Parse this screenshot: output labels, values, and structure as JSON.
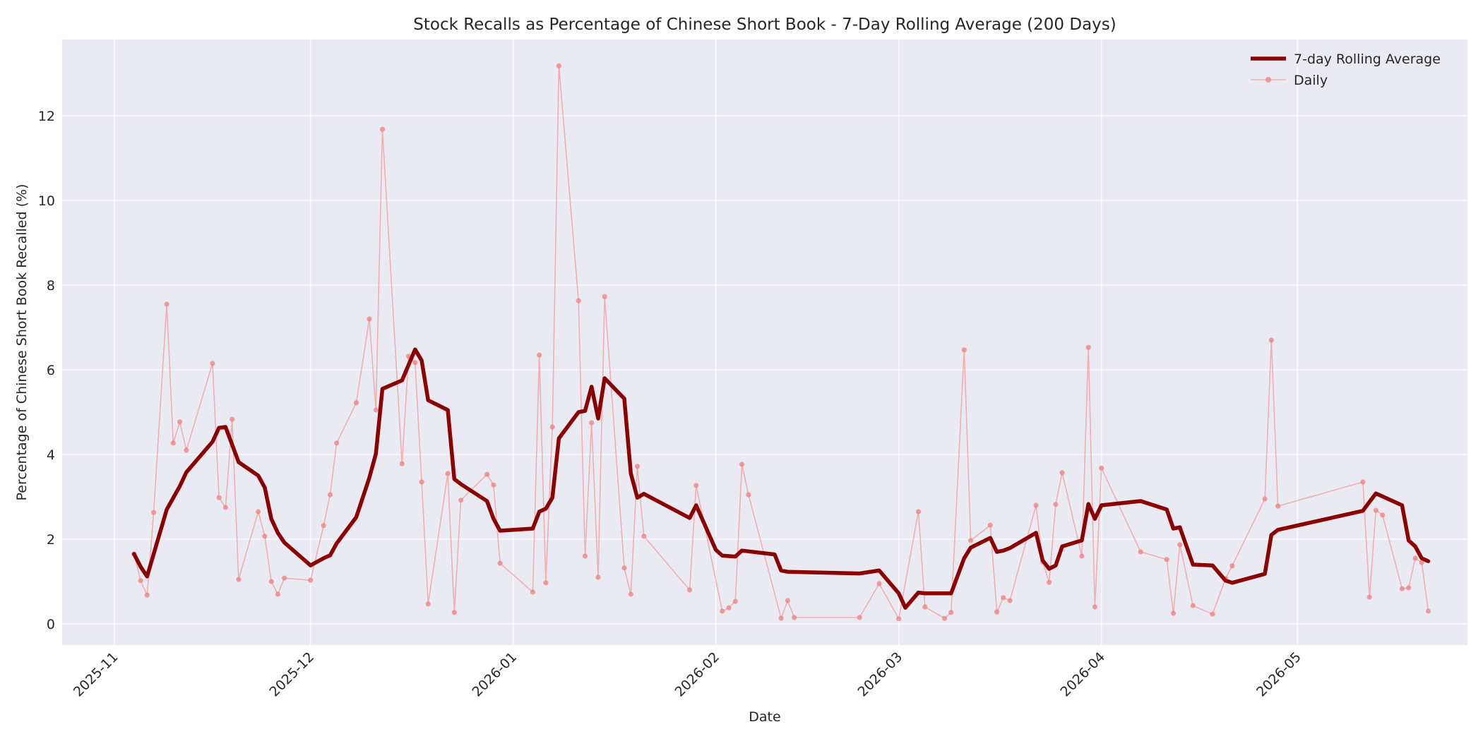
{
  "chart_data": {
    "type": "line",
    "title": "Stock Recalls as Percentage of Chinese Short Book - 7-Day Rolling Average (200 Days)",
    "xlabel": "Date",
    "ylabel": "Percentage of Chinese Short Book Recalled (%)",
    "x_range": [
      "2025-10-24",
      "2026-05-27"
    ],
    "ylim": [
      -0.5,
      13.8
    ],
    "x_ticks": [
      "2025-11-01",
      "2025-12-01",
      "2026-01-01",
      "2026-02-01",
      "2026-03-01",
      "2026-04-01",
      "2026-05-01"
    ],
    "x_tick_labels": [
      "2025-11",
      "2025-12",
      "2026-01",
      "2026-02",
      "2026-03",
      "2026-04",
      "2026-05"
    ],
    "y_ticks": [
      0,
      2,
      4,
      6,
      8,
      10,
      12
    ],
    "y_tick_labels": [
      "0",
      "2",
      "4",
      "6",
      "8",
      "10",
      "12"
    ],
    "grid": true,
    "legend_position": "top-right",
    "colors": {
      "plot_background": "#eaeaf2",
      "grid": "#ffffff",
      "rolling": "#8b0000",
      "daily": "#f08080"
    },
    "series": [
      {
        "name": "7-day Rolling Average",
        "style": "thick-line",
        "points": [
          [
            "2025-11-04",
            1.65
          ],
          [
            "2025-11-05",
            1.35
          ],
          [
            "2025-11-06",
            1.12
          ],
          [
            "2025-11-09",
            2.7
          ],
          [
            "2025-11-11",
            3.25
          ],
          [
            "2025-11-12",
            3.58
          ],
          [
            "2025-11-16",
            4.3
          ],
          [
            "2025-11-17",
            4.63
          ],
          [
            "2025-11-18",
            4.65
          ],
          [
            "2025-11-20",
            3.82
          ],
          [
            "2025-11-23",
            3.5
          ],
          [
            "2025-11-24",
            3.22
          ],
          [
            "2025-11-25",
            2.48
          ],
          [
            "2025-11-26",
            2.15
          ],
          [
            "2025-11-27",
            1.92
          ],
          [
            "2025-12-01",
            1.38
          ],
          [
            "2025-12-03",
            1.55
          ],
          [
            "2025-12-04",
            1.62
          ],
          [
            "2025-12-05",
            1.9
          ],
          [
            "2025-12-08",
            2.52
          ],
          [
            "2025-12-10",
            3.45
          ],
          [
            "2025-12-11",
            4.02
          ],
          [
            "2025-12-12",
            5.55
          ],
          [
            "2025-12-15",
            5.75
          ],
          [
            "2025-12-17",
            6.48
          ],
          [
            "2025-12-18",
            6.22
          ],
          [
            "2025-12-19",
            5.28
          ],
          [
            "2025-12-22",
            5.05
          ],
          [
            "2025-12-23",
            3.42
          ],
          [
            "2025-12-24",
            3.3
          ],
          [
            "2025-12-28",
            2.9
          ],
          [
            "2025-12-29",
            2.48
          ],
          [
            "2025-12-30",
            2.2
          ],
          [
            "2026-01-04",
            2.25
          ],
          [
            "2026-01-05",
            2.65
          ],
          [
            "2026-01-06",
            2.72
          ],
          [
            "2026-01-07",
            2.98
          ],
          [
            "2026-01-08",
            4.38
          ],
          [
            "2026-01-11",
            5.0
          ],
          [
            "2026-01-12",
            5.03
          ],
          [
            "2026-01-13",
            5.6
          ],
          [
            "2026-01-14",
            4.85
          ],
          [
            "2026-01-15",
            5.8
          ],
          [
            "2026-01-18",
            5.32
          ],
          [
            "2026-01-19",
            3.55
          ],
          [
            "2026-01-20",
            2.98
          ],
          [
            "2026-01-21",
            3.07
          ],
          [
            "2026-01-28",
            2.5
          ],
          [
            "2026-01-29",
            2.8
          ],
          [
            "2026-02-01",
            1.75
          ],
          [
            "2026-02-02",
            1.61
          ],
          [
            "2026-02-04",
            1.59
          ],
          [
            "2026-02-05",
            1.73
          ],
          [
            "2026-02-10",
            1.64
          ],
          [
            "2026-02-11",
            1.26
          ],
          [
            "2026-02-12",
            1.23
          ],
          [
            "2026-02-23",
            1.19
          ],
          [
            "2026-02-26",
            1.26
          ],
          [
            "2026-03-01",
            0.72
          ],
          [
            "2026-03-02",
            0.38
          ],
          [
            "2026-03-04",
            0.74
          ],
          [
            "2026-03-05",
            0.72
          ],
          [
            "2026-03-09",
            0.72
          ],
          [
            "2026-03-11",
            1.55
          ],
          [
            "2026-03-12",
            1.8
          ],
          [
            "2026-03-15",
            2.03
          ],
          [
            "2026-03-16",
            1.7
          ],
          [
            "2026-03-17",
            1.73
          ],
          [
            "2026-03-18",
            1.79
          ],
          [
            "2026-03-22",
            2.15
          ],
          [
            "2026-03-23",
            1.5
          ],
          [
            "2026-03-24",
            1.3
          ],
          [
            "2026-03-25",
            1.38
          ],
          [
            "2026-03-26",
            1.83
          ],
          [
            "2026-03-29",
            1.97
          ],
          [
            "2026-03-30",
            2.83
          ],
          [
            "2026-03-31",
            2.48
          ],
          [
            "2026-04-01",
            2.8
          ],
          [
            "2026-04-07",
            2.9
          ],
          [
            "2026-04-11",
            2.7
          ],
          [
            "2026-04-12",
            2.25
          ],
          [
            "2026-04-13",
            2.28
          ],
          [
            "2026-04-15",
            1.4
          ],
          [
            "2026-04-18",
            1.38
          ],
          [
            "2026-04-20",
            1.02
          ],
          [
            "2026-04-21",
            0.97
          ],
          [
            "2026-04-26",
            1.18
          ],
          [
            "2026-04-27",
            2.1
          ],
          [
            "2026-04-28",
            2.22
          ],
          [
            "2026-05-11",
            2.67
          ],
          [
            "2026-05-12",
            2.88
          ],
          [
            "2026-05-13",
            3.08
          ],
          [
            "2026-05-17",
            2.8
          ],
          [
            "2026-05-18",
            1.97
          ],
          [
            "2026-05-19",
            1.83
          ],
          [
            "2026-05-20",
            1.55
          ],
          [
            "2026-05-21",
            1.48
          ]
        ]
      },
      {
        "name": "Daily",
        "style": "thin-line-with-markers",
        "points": [
          [
            "2025-11-04",
            1.65
          ],
          [
            "2025-11-05",
            1.02
          ],
          [
            "2025-11-06",
            0.68
          ],
          [
            "2025-11-07",
            2.63
          ],
          [
            "2025-11-09",
            7.55
          ],
          [
            "2025-11-10",
            4.27
          ],
          [
            "2025-11-11",
            4.77
          ],
          [
            "2025-11-12",
            4.1
          ],
          [
            "2025-11-16",
            6.15
          ],
          [
            "2025-11-17",
            2.98
          ],
          [
            "2025-11-18",
            2.75
          ],
          [
            "2025-11-19",
            4.83
          ],
          [
            "2025-11-20",
            1.05
          ],
          [
            "2025-11-23",
            2.65
          ],
          [
            "2025-11-24",
            2.07
          ],
          [
            "2025-11-25",
            1.0
          ],
          [
            "2025-11-26",
            0.7
          ],
          [
            "2025-11-27",
            1.08
          ],
          [
            "2025-12-01",
            1.03
          ],
          [
            "2025-12-03",
            2.32
          ],
          [
            "2025-12-04",
            3.05
          ],
          [
            "2025-12-05",
            4.27
          ],
          [
            "2025-12-08",
            5.22
          ],
          [
            "2025-12-10",
            7.2
          ],
          [
            "2025-12-11",
            5.05
          ],
          [
            "2025-12-12",
            11.68
          ],
          [
            "2025-12-15",
            3.78
          ],
          [
            "2025-12-16",
            6.32
          ],
          [
            "2025-12-17",
            6.17
          ],
          [
            "2025-12-18",
            3.35
          ],
          [
            "2025-12-19",
            0.47
          ],
          [
            "2025-12-22",
            3.55
          ],
          [
            "2025-12-23",
            0.27
          ],
          [
            "2025-12-24",
            2.92
          ],
          [
            "2025-12-28",
            3.53
          ],
          [
            "2025-12-29",
            3.28
          ],
          [
            "2025-12-30",
            1.43
          ],
          [
            "2026-01-04",
            0.75
          ],
          [
            "2026-01-05",
            6.35
          ],
          [
            "2026-01-06",
            0.97
          ],
          [
            "2026-01-07",
            4.65
          ],
          [
            "2026-01-08",
            13.18
          ],
          [
            "2026-01-11",
            7.63
          ],
          [
            "2026-01-12",
            1.6
          ],
          [
            "2026-01-13",
            4.75
          ],
          [
            "2026-01-14",
            1.1
          ],
          [
            "2026-01-15",
            7.73
          ],
          [
            "2026-01-18",
            1.32
          ],
          [
            "2026-01-19",
            0.7
          ],
          [
            "2026-01-20",
            3.72
          ],
          [
            "2026-01-21",
            2.07
          ],
          [
            "2026-01-28",
            0.8
          ],
          [
            "2026-01-29",
            3.27
          ],
          [
            "2026-02-02",
            0.3
          ],
          [
            "2026-02-03",
            0.38
          ],
          [
            "2026-02-04",
            0.53
          ],
          [
            "2026-02-05",
            3.77
          ],
          [
            "2026-02-06",
            3.05
          ],
          [
            "2026-02-11",
            0.13
          ],
          [
            "2026-02-12",
            0.55
          ],
          [
            "2026-02-13",
            0.15
          ],
          [
            "2026-02-23",
            0.15
          ],
          [
            "2026-02-26",
            0.95
          ],
          [
            "2026-03-01",
            0.12
          ],
          [
            "2026-03-04",
            2.65
          ],
          [
            "2026-03-05",
            0.4
          ],
          [
            "2026-03-08",
            0.13
          ],
          [
            "2026-03-09",
            0.27
          ],
          [
            "2026-03-11",
            6.47
          ],
          [
            "2026-03-12",
            1.97
          ],
          [
            "2026-03-15",
            2.33
          ],
          [
            "2026-03-16",
            0.28
          ],
          [
            "2026-03-17",
            0.62
          ],
          [
            "2026-03-18",
            0.55
          ],
          [
            "2026-03-22",
            2.8
          ],
          [
            "2026-03-23",
            1.47
          ],
          [
            "2026-03-24",
            0.98
          ],
          [
            "2026-03-25",
            2.82
          ],
          [
            "2026-03-26",
            3.57
          ],
          [
            "2026-03-29",
            1.6
          ],
          [
            "2026-03-30",
            6.53
          ],
          [
            "2026-03-31",
            0.4
          ],
          [
            "2026-04-01",
            3.68
          ],
          [
            "2026-04-07",
            1.7
          ],
          [
            "2026-04-11",
            1.52
          ],
          [
            "2026-04-12",
            0.25
          ],
          [
            "2026-04-13",
            1.87
          ],
          [
            "2026-04-15",
            0.43
          ],
          [
            "2026-04-18",
            0.23
          ],
          [
            "2026-04-20",
            1.07
          ],
          [
            "2026-04-21",
            1.37
          ],
          [
            "2026-04-26",
            2.95
          ],
          [
            "2026-04-27",
            6.7
          ],
          [
            "2026-04-28",
            2.78
          ],
          [
            "2026-05-11",
            3.35
          ],
          [
            "2026-05-12",
            0.63
          ],
          [
            "2026-05-13",
            2.68
          ],
          [
            "2026-05-14",
            2.57
          ],
          [
            "2026-05-17",
            0.83
          ],
          [
            "2026-05-18",
            0.85
          ],
          [
            "2026-05-19",
            1.55
          ],
          [
            "2026-05-20",
            1.45
          ],
          [
            "2026-05-21",
            0.3
          ]
        ]
      }
    ]
  }
}
